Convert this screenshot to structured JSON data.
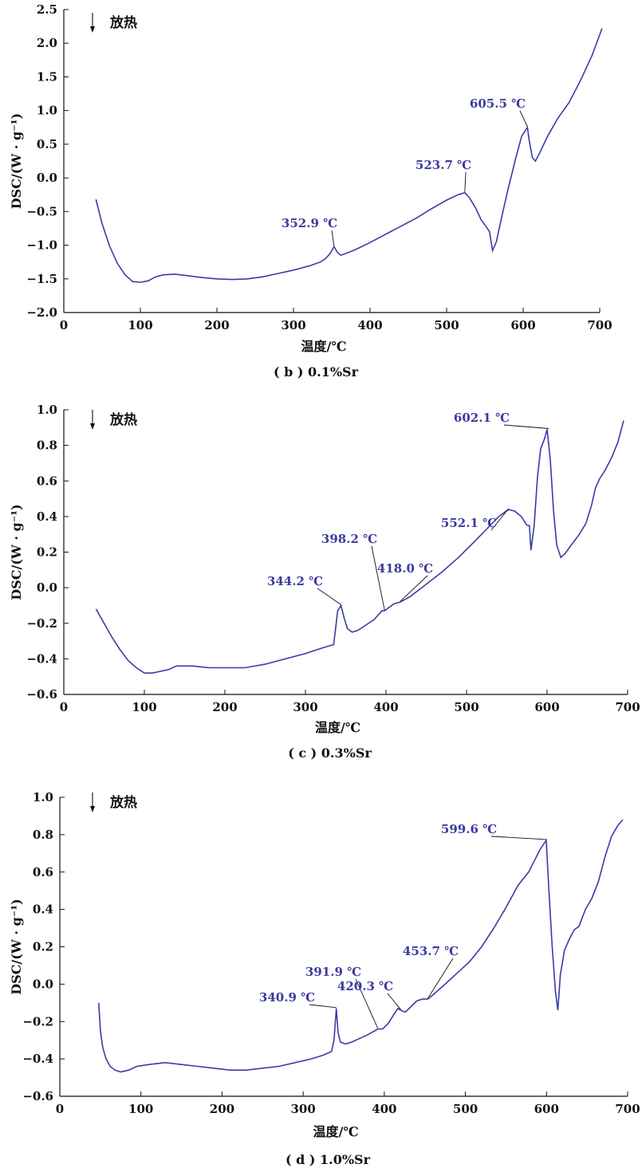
{
  "chart_data": [
    {
      "type": "line",
      "caption": "( b ) 0.1%Sr",
      "xlabel": "温度/℃",
      "ylabel": "DSC/(W · g⁻¹)",
      "note": "放热",
      "xlim": [
        0,
        700
      ],
      "ylim": [
        -2.0,
        2.5
      ],
      "xticks": [
        0,
        100,
        200,
        300,
        400,
        500,
        600,
        700
      ],
      "yticks": [
        -2.0,
        -1.5,
        -1.0,
        -0.5,
        0.0,
        0.5,
        1.0,
        1.5,
        2.0,
        2.5
      ],
      "ytick_labels": [
        "−2.0",
        "−1.5",
        "−1.0",
        "−0.5",
        "0.0",
        "0.5",
        "1.0",
        "1.5",
        "2.0",
        "2.5"
      ],
      "series": [
        {
          "x": [
            42,
            50,
            60,
            70,
            80,
            90,
            100,
            110,
            120,
            130,
            145,
            160,
            180,
            200,
            220,
            240,
            260,
            280,
            300,
            320,
            335,
            342,
            348,
            352.9,
            357,
            362,
            380,
            400,
            420,
            440,
            460,
            480,
            500,
            515,
            523.7,
            530,
            538,
            545,
            552,
            556,
            560,
            565,
            572,
            580,
            590,
            598,
            605.5,
            608,
            612,
            616,
            622,
            632,
            645,
            660,
            675,
            690,
            703
          ],
          "y": [
            -0.32,
            -0.68,
            -1.02,
            -1.27,
            -1.44,
            -1.54,
            -1.55,
            -1.53,
            -1.47,
            -1.44,
            -1.43,
            -1.45,
            -1.48,
            -1.5,
            -1.51,
            -1.5,
            -1.47,
            -1.42,
            -1.37,
            -1.31,
            -1.25,
            -1.2,
            -1.12,
            -1.02,
            -1.1,
            -1.15,
            -1.07,
            -0.96,
            -0.84,
            -0.72,
            -0.6,
            -0.46,
            -0.33,
            -0.25,
            -0.22,
            -0.3,
            -0.45,
            -0.62,
            -0.73,
            -0.8,
            -1.08,
            -0.95,
            -0.58,
            -0.18,
            0.28,
            0.62,
            0.75,
            0.55,
            0.3,
            0.25,
            0.38,
            0.62,
            0.88,
            1.12,
            1.45,
            1.82,
            2.22
          ]
        }
      ],
      "annotations": [
        {
          "label": "352.9 ℃",
          "x": 352.9,
          "y": -1.02
        },
        {
          "label": "523.7 ℃",
          "x": 523.7,
          "y": -0.22
        },
        {
          "label": "605.5 ℃",
          "x": 605.5,
          "y": 0.75
        }
      ]
    },
    {
      "type": "line",
      "caption": "( c ) 0.3%Sr",
      "xlabel": "温度/℃",
      "ylabel": "DSC/(W · g⁻¹)",
      "note": "放热",
      "xlim": [
        0,
        700
      ],
      "ylim": [
        -0.6,
        1.0
      ],
      "xticks": [
        0,
        100,
        200,
        300,
        400,
        500,
        600,
        700
      ],
      "yticks": [
        -0.6,
        -0.4,
        -0.2,
        0.0,
        0.2,
        0.4,
        0.6,
        0.8,
        1.0
      ],
      "ytick_labels": [
        "−0.6",
        "−0.4",
        "−0.2",
        "0.0",
        "0.2",
        "0.4",
        "0.6",
        "0.8",
        "1.0"
      ],
      "series": [
        {
          "x": [
            40,
            50,
            60,
            70,
            80,
            90,
            100,
            110,
            120,
            130,
            140,
            160,
            180,
            200,
            225,
            250,
            275,
            300,
            320,
            335,
            340,
            344.2,
            348,
            352,
            358,
            365,
            375,
            385,
            395,
            398.2,
            404,
            410,
            418,
            430,
            450,
            470,
            490,
            510,
            525,
            540,
            552.1,
            560,
            568,
            575,
            578,
            580,
            584,
            588,
            592,
            597,
            600,
            604,
            608,
            612,
            617,
            622,
            630,
            640,
            648,
            655,
            660,
            665,
            672,
            680,
            688,
            695
          ],
          "y": [
            -0.12,
            -0.2,
            -0.28,
            -0.35,
            -0.41,
            -0.45,
            -0.48,
            -0.48,
            -0.47,
            -0.46,
            -0.44,
            -0.44,
            -0.45,
            -0.45,
            -0.45,
            -0.43,
            -0.4,
            -0.37,
            -0.34,
            -0.32,
            -0.13,
            -0.1,
            -0.17,
            -0.23,
            -0.25,
            -0.24,
            -0.21,
            -0.18,
            -0.13,
            -0.13,
            -0.11,
            -0.09,
            -0.08,
            -0.05,
            0.02,
            0.09,
            0.17,
            0.26,
            0.33,
            0.4,
            0.44,
            0.43,
            0.4,
            0.35,
            0.35,
            0.21,
            0.35,
            0.62,
            0.78,
            0.84,
            0.89,
            0.72,
            0.43,
            0.24,
            0.17,
            0.19,
            0.24,
            0.3,
            0.36,
            0.46,
            0.56,
            0.61,
            0.66,
            0.73,
            0.82,
            0.94
          ]
        }
      ],
      "annotations": [
        {
          "label": "344.2 ℃",
          "x": 344.2,
          "y": -0.1
        },
        {
          "label": "398.2 ℃",
          "x": 398.2,
          "y": -0.13
        },
        {
          "label": "418.0 ℃",
          "x": 418.0,
          "y": -0.08
        },
        {
          "label": "552.1 ℃",
          "x": 552.1,
          "y": 0.44
        },
        {
          "label": "602.1 ℃",
          "x": 602.1,
          "y": 0.89
        }
      ]
    },
    {
      "type": "line",
      "caption": "( d ) 1.0%Sr",
      "xlabel": "温度/℃",
      "ylabel": "DSC/(W · g⁻¹)",
      "note": "放热",
      "xlim": [
        0,
        700
      ],
      "ylim": [
        -0.6,
        1.0
      ],
      "xticks": [
        0,
        100,
        200,
        300,
        400,
        500,
        600,
        700
      ],
      "yticks": [
        -0.6,
        -0.4,
        -0.2,
        0.0,
        0.2,
        0.4,
        0.6,
        0.8,
        1.0
      ],
      "ytick_labels": [
        "−0.6",
        "−0.4",
        "−0.2",
        "0.0",
        "0.2",
        "0.4",
        "0.6",
        "0.8",
        "1.0"
      ],
      "series": [
        {
          "x": [
            48,
            50,
            53,
            57,
            62,
            68,
            75,
            85,
            95,
            110,
            130,
            150,
            170,
            190,
            210,
            230,
            250,
            270,
            290,
            310,
            325,
            335,
            338,
            340.9,
            343,
            346,
            352,
            360,
            370,
            380,
            388,
            391.9,
            398,
            405,
            412,
            417,
            420.3,
            426,
            433,
            440,
            447,
            453.7,
            462,
            475,
            490,
            505,
            520,
            535,
            550,
            565,
            578,
            585,
            592,
            599.6,
            603,
            607,
            611,
            614,
            617,
            622,
            628,
            634,
            640,
            648,
            656,
            664,
            672,
            680,
            688,
            694
          ],
          "y": [
            -0.1,
            -0.25,
            -0.34,
            -0.4,
            -0.44,
            -0.46,
            -0.47,
            -0.46,
            -0.44,
            -0.43,
            -0.42,
            -0.43,
            -0.44,
            -0.45,
            -0.46,
            -0.46,
            -0.45,
            -0.44,
            -0.42,
            -0.4,
            -0.38,
            -0.36,
            -0.3,
            -0.13,
            -0.26,
            -0.31,
            -0.32,
            -0.31,
            -0.29,
            -0.27,
            -0.25,
            -0.24,
            -0.24,
            -0.21,
            -0.16,
            -0.13,
            -0.14,
            -0.15,
            -0.12,
            -0.09,
            -0.08,
            -0.08,
            -0.05,
            0.0,
            0.06,
            0.12,
            0.2,
            0.3,
            0.41,
            0.53,
            0.6,
            0.66,
            0.72,
            0.77,
            0.5,
            0.2,
            -0.04,
            -0.14,
            0.05,
            0.18,
            0.24,
            0.29,
            0.31,
            0.4,
            0.46,
            0.55,
            0.68,
            0.79,
            0.85,
            0.88
          ]
        }
      ],
      "annotations": [
        {
          "label": "340.9 ℃",
          "x": 340.9,
          "y": -0.13
        },
        {
          "label": "391.9 ℃",
          "x": 391.9,
          "y": -0.24
        },
        {
          "label": "420.3 ℃",
          "x": 420.3,
          "y": -0.14
        },
        {
          "label": "453.7 ℃",
          "x": 453.7,
          "y": -0.08
        },
        {
          "label": "599.6 ℃",
          "x": 599.6,
          "y": 0.77
        }
      ]
    }
  ]
}
